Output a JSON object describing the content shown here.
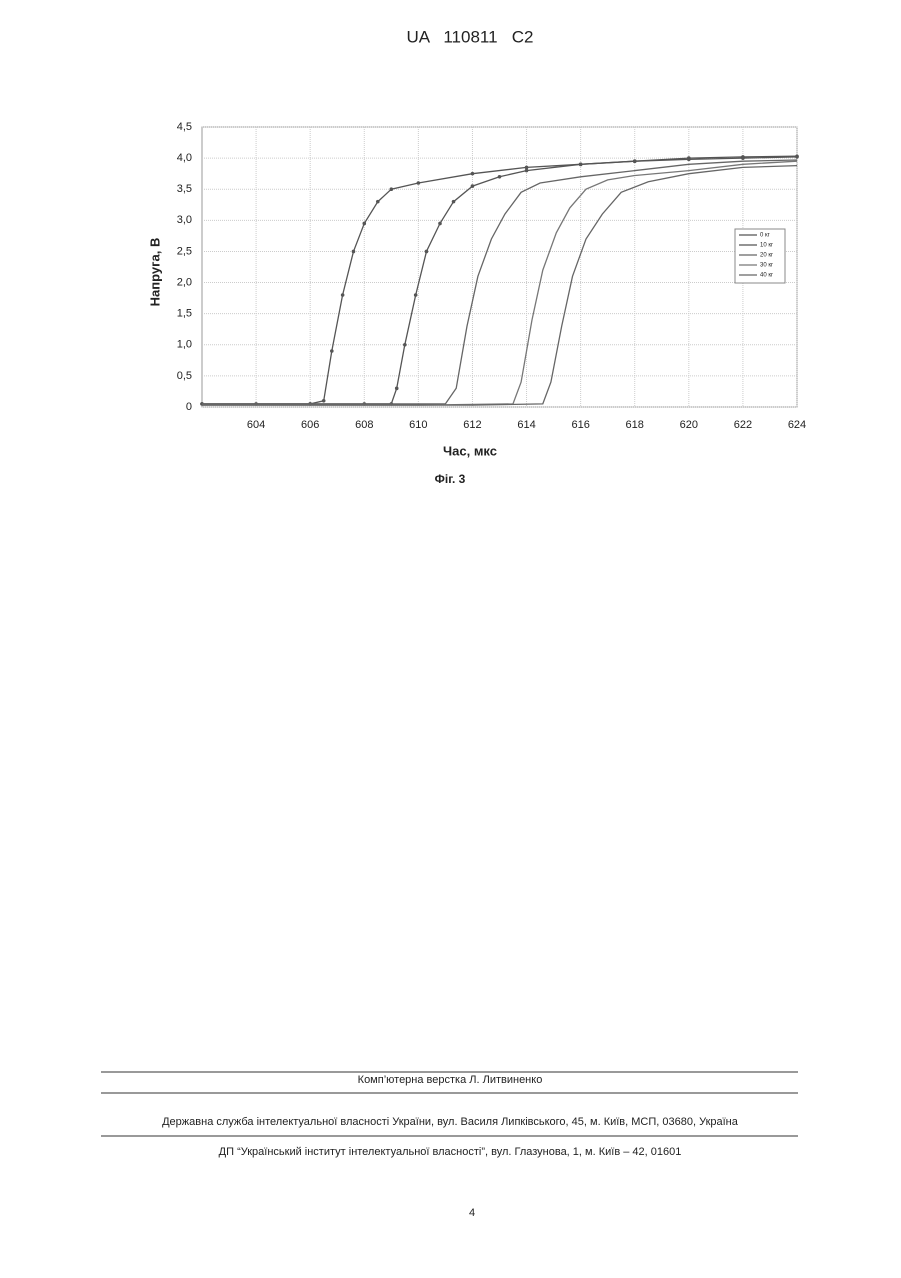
{
  "header": {
    "title": "UA   110811   C2"
  },
  "chart_data": {
    "type": "line",
    "x_label": "Час, мкс",
    "y_label": "Напруга, В",
    "caption": "Фіг. 3",
    "xlim": [
      602,
      624
    ],
    "xticks": [
      604,
      606,
      608,
      610,
      612,
      614,
      616,
      618,
      620,
      622,
      624
    ],
    "ylim": [
      0,
      4.5
    ],
    "yticks": [
      0,
      {
        "value": 0.5,
        "label": "0,5"
      },
      {
        "value": 1,
        "label": "1,0"
      },
      {
        "value": 1.5,
        "label": "1,5"
      },
      {
        "value": 2,
        "label": "2,0"
      },
      {
        "value": 2.5,
        "label": "2,5"
      },
      {
        "value": 3,
        "label": "3,0"
      },
      {
        "value": 3.5,
        "label": "3,5"
      },
      {
        "value": 4,
        "label": "4,0"
      },
      {
        "value": 4.5,
        "label": "4,5"
      }
    ],
    "grid": true,
    "legend": "right",
    "series": [
      {
        "name": "0 кг",
        "color": "#555555",
        "marker": "circle",
        "x": [
          602,
          604,
          606,
          606.5,
          606.8,
          607.2,
          607.6,
          608,
          608.5,
          609,
          610,
          612,
          614,
          616,
          618,
          620,
          622,
          624
        ],
        "values": [
          0.05,
          0.05,
          0.05,
          0.1,
          0.9,
          1.8,
          2.5,
          2.95,
          3.3,
          3.5,
          3.6,
          3.75,
          3.85,
          3.9,
          3.95,
          4.0,
          4.02,
          4.03
        ]
      },
      {
        "name": "10 кг",
        "color": "#555555",
        "marker": "circle",
        "x": [
          602,
          606,
          608,
          609,
          609.2,
          609.5,
          609.9,
          610.3,
          610.8,
          611.3,
          612,
          613,
          614,
          616,
          618,
          620,
          622,
          624
        ],
        "values": [
          0.05,
          0.05,
          0.05,
          0.05,
          0.3,
          1.0,
          1.8,
          2.5,
          2.95,
          3.3,
          3.55,
          3.7,
          3.8,
          3.9,
          3.95,
          3.98,
          4.0,
          4.02
        ]
      },
      {
        "name": "20 кг",
        "color": "#666666",
        "marker": "none",
        "x": [
          602,
          608,
          611,
          611.4,
          611.8,
          612.2,
          612.7,
          613.2,
          613.8,
          614.5,
          616,
          618,
          620,
          622,
          624
        ],
        "values": [
          0.05,
          0.05,
          0.05,
          0.3,
          1.3,
          2.1,
          2.7,
          3.1,
          3.45,
          3.6,
          3.7,
          3.8,
          3.9,
          3.95,
          3.97
        ]
      },
      {
        "name": "30 кг",
        "color": "#777777",
        "marker": "none",
        "x": [
          602,
          610,
          613.5,
          613.8,
          614.2,
          614.6,
          615.1,
          615.6,
          616.2,
          617,
          618,
          620,
          622,
          624
        ],
        "values": [
          0.03,
          0.03,
          0.05,
          0.4,
          1.4,
          2.2,
          2.8,
          3.2,
          3.5,
          3.65,
          3.72,
          3.8,
          3.9,
          3.95
        ]
      },
      {
        "name": "40 кг",
        "color": "#666666",
        "marker": "none",
        "x": [
          602,
          612,
          614.6,
          614.9,
          615.3,
          615.7,
          616.2,
          616.8,
          617.5,
          618.5,
          620,
          622,
          624
        ],
        "values": [
          0.03,
          0.03,
          0.05,
          0.4,
          1.3,
          2.1,
          2.7,
          3.1,
          3.45,
          3.62,
          3.75,
          3.85,
          3.88
        ]
      }
    ]
  },
  "footer": {
    "layout": "Комп’ютерна верстка Л. Литвиненко",
    "office": "Державна служба інтелектуальної власності України, вул. Василя Липківського, 45, м. Київ, МСП, 03680, Україна",
    "institute": "ДП “Український інститут інтелектуальної власності”, вул. Глазунова, 1, м. Київ – 42, 01601",
    "page": "4"
  }
}
